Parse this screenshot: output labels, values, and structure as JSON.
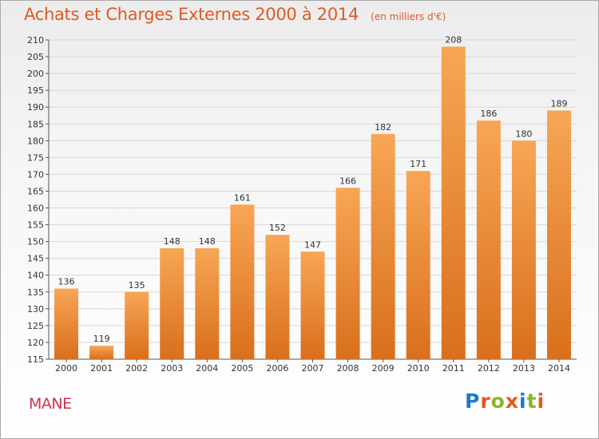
{
  "header": {
    "title": "Achats et Charges Externes 2000 à 2014",
    "unit": "(en milliers d'€)"
  },
  "footer": {
    "commune": "MANE",
    "logo_text": "Proxiti",
    "logo_letter_colors": [
      "#1e78c8",
      "#e8561e",
      "#8ab526",
      "#e8561e",
      "#1e78c8",
      "#8ab526",
      "#e8561e"
    ]
  },
  "chart_data": {
    "type": "bar",
    "title": "Achats et Charges Externes 2000 à 2014",
    "xlabel": "",
    "ylabel": "",
    "categories": [
      "2000",
      "2001",
      "2002",
      "2003",
      "2004",
      "2005",
      "2006",
      "2007",
      "2008",
      "2009",
      "2010",
      "2011",
      "2012",
      "2013",
      "2014"
    ],
    "values": [
      136,
      119,
      135,
      148,
      148,
      161,
      152,
      147,
      166,
      182,
      171,
      208,
      186,
      180,
      189
    ],
    "ylim": [
      115,
      210
    ],
    "yticks": [
      115,
      120,
      125,
      130,
      135,
      140,
      145,
      150,
      155,
      160,
      165,
      170,
      175,
      180,
      185,
      190,
      195,
      200,
      205,
      210
    ],
    "grid": true,
    "legend": "none",
    "bar_color_top": "#f7a655",
    "bar_color_bottom": "#d96f1c"
  }
}
